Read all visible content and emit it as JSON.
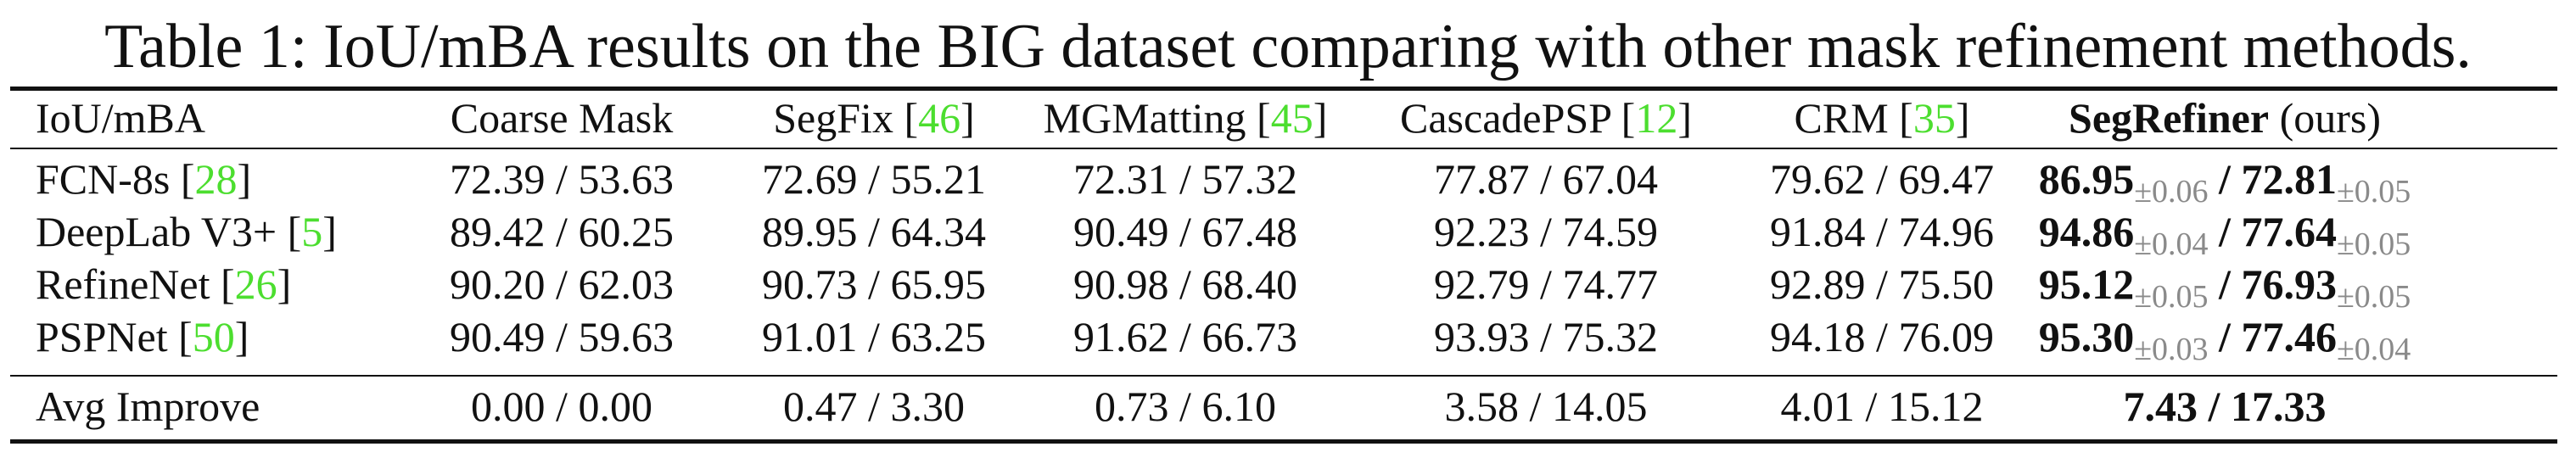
{
  "caption": "Table 1: IoU/mBA results on the BIG dataset comparing with other mask refinement methods.",
  "header": {
    "metric": "IoU/mBA",
    "coarse": "Coarse Mask",
    "segfix": "SegFix",
    "segfix_ref": "46",
    "mgmatting": "MGMatting",
    "mgmatting_ref": "45",
    "cascadepsp": "CascadePSP",
    "cascadepsp_ref": "12",
    "crm": "CRM",
    "crm_ref": "35",
    "ours": "SegRefiner",
    "ours_suffix": "(ours)"
  },
  "rows": [
    {
      "name": "FCN-8s",
      "ref": "28",
      "coarse": "72.39 / 53.63",
      "segfix": "72.69 / 55.21",
      "mgmatting": "72.31 / 57.32",
      "cascadepsp": "77.87 / 67.04",
      "crm": "79.62 / 69.47",
      "ours_iou": "86.95",
      "ours_iou_pm": "±0.06",
      "ours_mba": "72.81",
      "ours_mba_pm": "±0.05"
    },
    {
      "name": "DeepLab V3+",
      "ref": "5",
      "coarse": "89.42 / 60.25",
      "segfix": "89.95 / 64.34",
      "mgmatting": "90.49 / 67.48",
      "cascadepsp": "92.23 / 74.59",
      "crm": "91.84 / 74.96",
      "ours_iou": "94.86",
      "ours_iou_pm": "±0.04",
      "ours_mba": "77.64",
      "ours_mba_pm": "±0.05"
    },
    {
      "name": "RefineNet",
      "ref": "26",
      "coarse": "90.20 / 62.03",
      "segfix": "90.73 / 65.95",
      "mgmatting": "90.98 / 68.40",
      "cascadepsp": "92.79 / 74.77",
      "crm": "92.89 / 75.50",
      "ours_iou": "95.12",
      "ours_iou_pm": "±0.05",
      "ours_mba": "76.93",
      "ours_mba_pm": "±0.05"
    },
    {
      "name": "PSPNet",
      "ref": "50",
      "coarse": "90.49 / 59.63",
      "segfix": "91.01 / 63.25",
      "mgmatting": "91.62 / 66.73",
      "cascadepsp": "93.93 / 75.32",
      "crm": "94.18 / 76.09",
      "ours_iou": "95.30",
      "ours_iou_pm": "±0.03",
      "ours_mba": "77.46",
      "ours_mba_pm": "±0.04"
    }
  ],
  "avg": {
    "name": "Avg Improve",
    "coarse": "0.00 / 0.00",
    "segfix": "0.47 / 3.30",
    "mgmatting": "0.73 / 6.10",
    "cascadepsp": "3.58 / 14.05",
    "crm": "4.01 / 15.12",
    "ours": "7.43 / 17.33"
  },
  "colors": {
    "citation": "#4cde2f",
    "std": "#8a8a8a",
    "text": "#111111"
  }
}
